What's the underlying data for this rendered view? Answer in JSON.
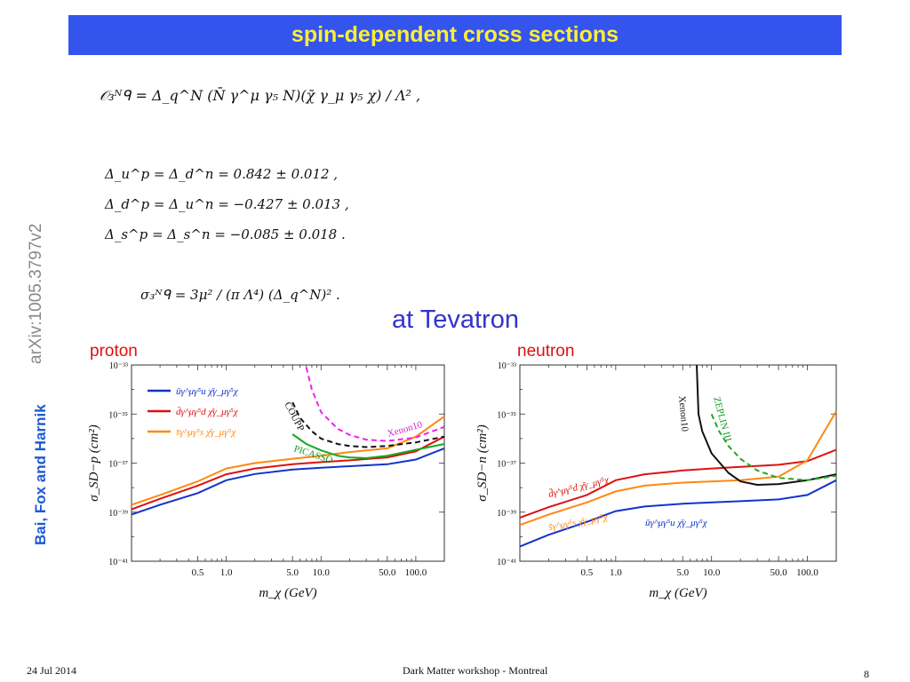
{
  "slide": {
    "title": "spin-dependent cross sections",
    "arxiv": "arXiv:1005.3797v2",
    "authors": "Bai, Fox and Harnik",
    "subtitle": "at Tevatron",
    "footer_date": "24 Jul 2014",
    "footer_event": "Dark Matter workshop - Montreal",
    "page_number": "8"
  },
  "equations": {
    "operator": "𝒪₃ᴺᑫ = Δ_q^N (N̄ γ^μ γ₅ N)(χ̄ γ_μ γ₅ χ) / Λ² ,",
    "delta_u": "Δ_u^p = Δ_d^n = 0.842 ± 0.012 ,",
    "delta_d": "Δ_d^p = Δ_u^n = −0.427 ± 0.013 ,",
    "delta_s": "Δ_s^p = Δ_s^n = −0.085 ± 0.018 .",
    "sigma": "σ₃ᴺᑫ = 3μ² / (π Λ⁴) (Δ_q^N)² ."
  },
  "chart_data": [
    {
      "type": "line",
      "panel_label": "proton",
      "xlabel": "m_χ (GeV)",
      "ylabel": "σ_SD−p (cm²)",
      "xscale": "log",
      "yscale": "log",
      "xlim": [
        0.1,
        200
      ],
      "ylim": [
        1e-41,
        1e-33
      ],
      "xticks": [
        "0.5",
        "1.0",
        "5.0",
        "10.0",
        "50.0",
        "100.0"
      ],
      "yticks": [
        "10⁻³³",
        "10⁻³⁵",
        "10⁻³⁷",
        "10⁻³⁹",
        "10⁻⁴¹"
      ],
      "legend_position": "top-left",
      "series": [
        {
          "name": "ūγ^μγ⁵u χ̄γ_μγ⁵χ",
          "color": "#1133cc",
          "style": "solid",
          "x": [
            0.1,
            0.2,
            0.5,
            1.0,
            2.0,
            5.0,
            10,
            20,
            50,
            100,
            200
          ],
          "y": [
            8e-40,
            2e-39,
            6e-39,
            2e-38,
            3.6e-38,
            5.5e-38,
            6.5e-38,
            7.5e-38,
            9e-38,
            1.4e-37,
            4e-37
          ]
        },
        {
          "name": "d̄γ^μγ⁵d χ̄γ_μγ⁵χ",
          "color": "#dd1111",
          "style": "solid",
          "x": [
            0.1,
            0.2,
            0.5,
            1.0,
            2.0,
            5.0,
            10,
            20,
            50,
            100,
            200
          ],
          "y": [
            1.3e-39,
            3.5e-39,
            1.2e-38,
            3.5e-38,
            6e-38,
            9e-38,
            1.1e-37,
            1.3e-37,
            1.7e-37,
            3e-37,
            1.2e-36
          ]
        },
        {
          "name": "s̄γ^μγ⁵s χ̄γ_μγ⁵χ",
          "color": "#ff8811",
          "style": "solid",
          "x": [
            0.1,
            0.2,
            0.5,
            1.0,
            2.0,
            5.0,
            10,
            20,
            50,
            100,
            200
          ],
          "y": [
            2e-39,
            5e-39,
            1.8e-38,
            6e-38,
            1e-37,
            1.5e-37,
            2e-37,
            2.8e-37,
            4e-37,
            1.2e-36,
            8e-36
          ]
        },
        {
          "name": "COUPP",
          "color": "#111111",
          "style": "dashed",
          "x": [
            5,
            6,
            8,
            10,
            15,
            20,
            30,
            50,
            100,
            200
          ],
          "y": [
            3e-35,
            7e-36,
            2e-36,
            1e-36,
            6e-37,
            5e-37,
            4.5e-37,
            5e-37,
            7e-37,
            1.2e-36
          ]
        },
        {
          "name": "Xenon10",
          "color": "#ee22ee",
          "style": "dashed",
          "x": [
            7,
            8,
            10,
            15,
            20,
            30,
            50,
            100,
            200
          ],
          "y": [
            8e-34,
            1e-34,
            1.2e-35,
            2.5e-36,
            1.4e-36,
            9e-37,
            8e-37,
            1.1e-36,
            3e-36
          ]
        },
        {
          "name": "PICASSO",
          "color": "#11aa22",
          "style": "solid",
          "x": [
            5,
            7,
            10,
            15,
            20,
            30,
            50,
            100,
            200
          ],
          "y": [
            1.5e-36,
            6e-37,
            3.3e-37,
            2e-37,
            1.7e-37,
            1.6e-37,
            2e-37,
            3.5e-37,
            6e-37
          ]
        }
      ],
      "annotations": [
        "COUPP",
        "Xenon10",
        "PICASSO"
      ]
    },
    {
      "type": "line",
      "panel_label": "neutron",
      "xlabel": "m_χ (GeV)",
      "ylabel": "σ_SD−n (cm²)",
      "xscale": "log",
      "yscale": "log",
      "xlim": [
        0.1,
        200
      ],
      "ylim": [
        1e-41,
        1e-33
      ],
      "xticks": [
        "0.5",
        "1.0",
        "5.0",
        "10.0",
        "50.0",
        "100.0"
      ],
      "yticks": [
        "10⁻³³",
        "10⁻³⁵",
        "10⁻³⁷",
        "10⁻³⁹",
        "10⁻⁴¹"
      ],
      "series": [
        {
          "name": "d̄γ^μγ⁵d χ̄γ_μγ⁵χ",
          "color": "#dd1111",
          "style": "solid",
          "x": [
            0.1,
            0.2,
            0.5,
            1.0,
            2.0,
            5.0,
            10,
            20,
            50,
            100,
            200
          ],
          "y": [
            6e-40,
            1.6e-39,
            5e-39,
            2e-38,
            3.5e-38,
            5e-38,
            6e-38,
            7e-38,
            8.5e-38,
            1.2e-37,
            3.5e-37
          ]
        },
        {
          "name": "s̄γ^μγ⁵s χ̄γ_μγ⁵χ",
          "color": "#ff8811",
          "style": "solid",
          "x": [
            0.1,
            0.2,
            0.5,
            1.0,
            2.0,
            5.0,
            10,
            20,
            50,
            100,
            200
          ],
          "y": [
            3e-40,
            8e-40,
            2.5e-39,
            7e-39,
            1.2e-38,
            1.6e-38,
            1.8e-38,
            2e-38,
            2.8e-38,
            1.3e-37,
            1.3e-35
          ]
        },
        {
          "name": "ūγ^μγ⁵u χ̄γ_μγ⁵χ",
          "color": "#1133cc",
          "style": "solid",
          "x": [
            0.1,
            0.2,
            0.5,
            1.0,
            2.0,
            5.0,
            10,
            20,
            50,
            100,
            200
          ],
          "y": [
            4e-41,
            1.2e-40,
            4e-40,
            1.1e-39,
            1.7e-39,
            2.2e-39,
            2.5e-39,
            2.8e-39,
            3.3e-39,
            5e-39,
            2e-38
          ]
        },
        {
          "name": "Xenon10",
          "color": "#111111",
          "style": "solid",
          "x": [
            7,
            7.3,
            8,
            10,
            15,
            20,
            30,
            50,
            100,
            200
          ],
          "y": [
            1e-33,
            1e-35,
            2e-36,
            2.5e-37,
            4e-38,
            1.8e-38,
            1.3e-38,
            1.4e-38,
            2e-38,
            3.5e-38
          ]
        },
        {
          "name": "ZEPLIN III",
          "color": "#22aa22",
          "style": "dashed",
          "x": [
            10,
            12,
            15,
            20,
            30,
            50,
            100,
            200
          ],
          "y": [
            1e-35,
            2e-36,
            5e-37,
            1.5e-37,
            5e-38,
            2.5e-38,
            2e-38,
            3e-38
          ]
        }
      ],
      "annotations": [
        "d̄γ^μγ⁵d χ̄γ_μγ⁵χ",
        "s̄γ^μγ⁵s χ̄γ_μγ⁵χ",
        "ūγ^μγ⁵u χ̄γ_μγ⁵χ",
        "Xenon10",
        "ZEPLIN III"
      ]
    }
  ]
}
